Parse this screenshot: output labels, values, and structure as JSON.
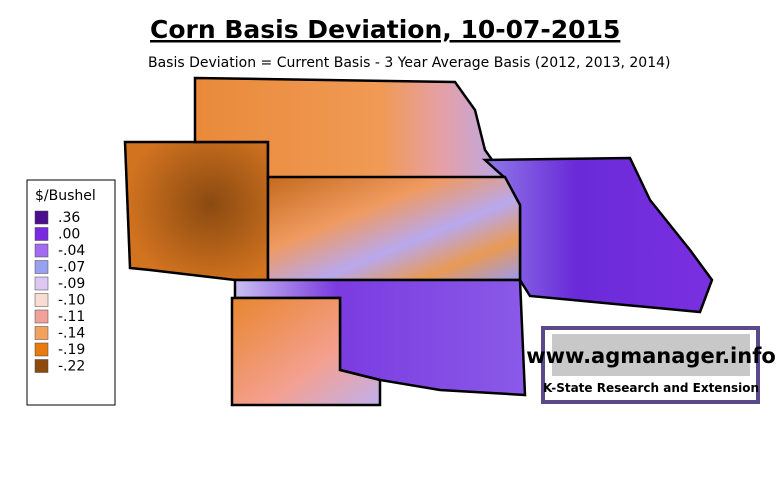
{
  "title": "Corn Basis Deviation, 10-07-2015",
  "subtitle": "Basis Deviation = Current Basis - 3 Year Average Basis (2012, 2013, 2014)",
  "legend": {
    "title": "$/Bushel",
    "items": [
      {
        "label": ".36",
        "color": "#4b0f8f"
      },
      {
        "label": ".00",
        "color": "#7a2be0"
      },
      {
        "label": "-.04",
        "color": "#a36bef"
      },
      {
        "label": "-.07",
        "color": "#9aa0f0"
      },
      {
        "label": "-.09",
        "color": "#dcc8f2"
      },
      {
        "label": "-.10",
        "color": "#f8ddd3"
      },
      {
        "label": "-.11",
        "color": "#f4a09a"
      },
      {
        "label": "-.14",
        "color": "#f3a15f"
      },
      {
        "label": "-.19",
        "color": "#e87a10"
      },
      {
        "label": "-.22",
        "color": "#8e4a0c"
      }
    ]
  },
  "logo": {
    "url": "www.agmanager.info",
    "org": "K-State Research and Extension"
  }
}
